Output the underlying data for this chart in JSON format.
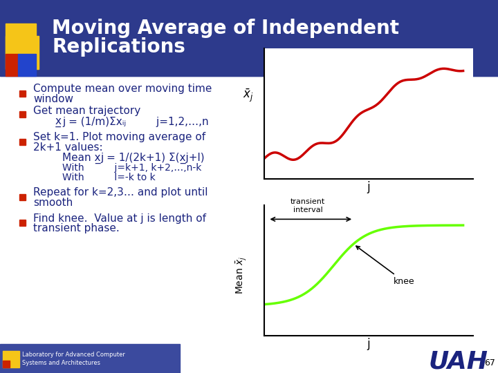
{
  "title": "Moving Average of Independent\nReplications",
  "title_color": "#1a237e",
  "title_fontsize": 22,
  "bg_color": "#ffffff",
  "bullet_color": "#1a237e",
  "bullet_square_color": "#cc0000",
  "slide_accent_yellow": "#ffcc00",
  "slide_accent_blue": "#3333cc",
  "slide_accent_red": "#cc0000",
  "bullets": [
    "Compute mean over moving time\nwindow",
    "Get mean trajectory",
    "Set k=1. Plot moving average of\n2k+1 values:",
    "Repeat for k=2,3… and plot until\nsmooth",
    "Find knee.  Value at j is length of\ntransient phase."
  ],
  "sub_lines": [
    "x̲j = (1/m)Σxᵢⱼ         j=1,2,…,n",
    "Mean x̲j = 1/(2k+1) Σ(x̲j+l)",
    "With         j=k+1, k+2,…,n-k",
    "With         l=-k to k"
  ],
  "footer_text": "Laboratory for Advanced Computer\nSystems and Architectures",
  "page_number": "67",
  "uah_color": "#1a237e"
}
